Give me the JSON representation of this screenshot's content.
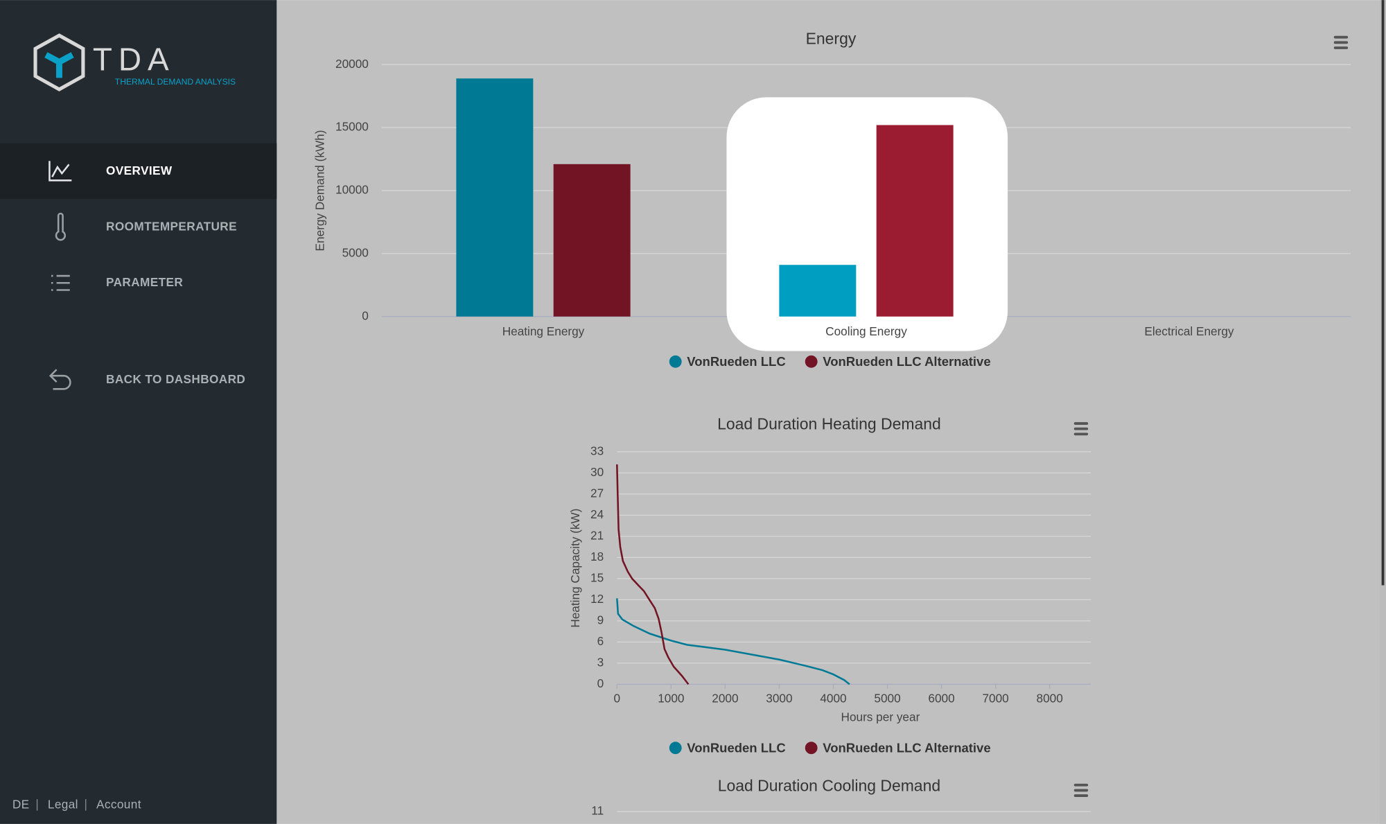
{
  "sidebar": {
    "logo": "TDA",
    "logo_subtitle": "THERMAL DEMAND ANALYSIS",
    "nav": [
      "OVERVIEW",
      "ROOMTEMPERATURE",
      "PARAMETER",
      "BACK TO DASHBOARD"
    ],
    "footer": [
      "DE",
      "Legal",
      "Account"
    ]
  },
  "chart_data": [
    {
      "type": "bar",
      "title": "Energy",
      "y_label": "Energy Demand (kWh)",
      "categories": [
        "Heating Energy",
        "Cooling Energy",
        "Electrical Energy"
      ],
      "series": [
        {
          "name": "VonRueden LLC",
          "color": "#007a94",
          "highlight_color": "#009fc2",
          "values": [
            18900,
            4100,
            null
          ]
        },
        {
          "name": "VonRueden LLC Alternative",
          "color": "#731424",
          "highlight_color": "#9b1c31",
          "values": [
            12100,
            15200,
            null
          ]
        }
      ],
      "highlight": 1,
      "ylim": [
        0,
        20000
      ],
      "yticks": [
        0,
        5000,
        10000,
        15000,
        20000
      ],
      "grid": true
    },
    {
      "type": "line",
      "title": "Load Duration Heating Demand",
      "x_label": "Hours per year",
      "y_label": "Heating Capacity (kW)",
      "series": [
        {
          "name": "VonRueden LLC",
          "color": "#007a94",
          "x": [
            0,
            20,
            100,
            300,
            600,
            1000,
            1300,
            2000,
            2500,
            3000,
            3500,
            3800,
            4000,
            4200,
            4300
          ],
          "values": [
            12.2,
            10,
            9.2,
            8.3,
            7.2,
            6.2,
            5.6,
            4.9,
            4.2,
            3.5,
            2.6,
            2,
            1.4,
            0.6,
            0
          ]
        },
        {
          "name": "VonRueden LLC Alternative",
          "color": "#731424",
          "x": [
            0,
            10,
            30,
            60,
            110,
            200,
            280,
            400,
            500,
            600,
            700,
            770,
            820,
            880,
            950,
            1050,
            1200,
            1320
          ],
          "values": [
            31.2,
            28,
            22,
            19.5,
            17.5,
            16,
            15,
            14,
            13.2,
            12,
            10.8,
            9.3,
            7.5,
            5,
            3.8,
            2.5,
            1.2,
            0
          ]
        }
      ],
      "xlim": [
        0,
        8760
      ],
      "xticks": [
        0,
        1000,
        2000,
        3000,
        4000,
        5000,
        6000,
        7000,
        8000
      ],
      "ylim": [
        0,
        33
      ],
      "yticks": [
        0,
        3,
        6,
        9,
        12,
        15,
        18,
        21,
        24,
        27,
        30,
        33
      ],
      "grid": true
    },
    {
      "type": "line",
      "title": "Load Duration Cooling Demand",
      "yticks": [
        11
      ],
      "grid": true
    }
  ]
}
